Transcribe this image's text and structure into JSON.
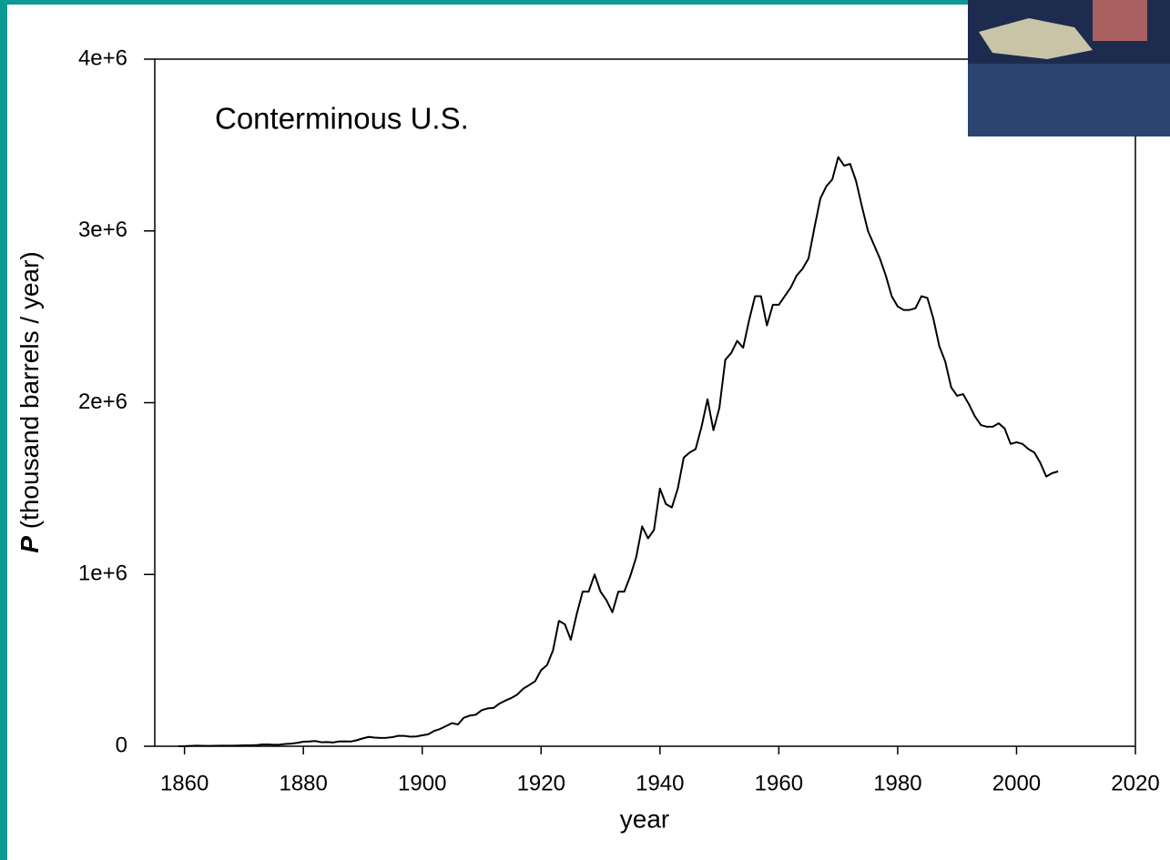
{
  "chart_data": {
    "type": "line",
    "annotation": "Conterminous U.S.",
    "x_label": "year",
    "y_label_symbol": "P",
    "y_label": "(thousand barrels / year)",
    "x": [
      1859,
      1860,
      1861,
      1862,
      1863,
      1864,
      1865,
      1866,
      1867,
      1868,
      1869,
      1870,
      1871,
      1872,
      1873,
      1874,
      1875,
      1876,
      1877,
      1878,
      1879,
      1880,
      1881,
      1882,
      1883,
      1884,
      1885,
      1886,
      1887,
      1888,
      1889,
      1890,
      1891,
      1892,
      1893,
      1894,
      1895,
      1896,
      1897,
      1898,
      1899,
      1900,
      1901,
      1902,
      1903,
      1904,
      1905,
      1906,
      1907,
      1908,
      1909,
      1910,
      1911,
      1912,
      1913,
      1914,
      1915,
      1916,
      1917,
      1918,
      1919,
      1920,
      1921,
      1922,
      1923,
      1924,
      1925,
      1926,
      1927,
      1928,
      1929,
      1930,
      1931,
      1932,
      1933,
      1934,
      1935,
      1936,
      1937,
      1938,
      1939,
      1940,
      1941,
      1942,
      1943,
      1944,
      1945,
      1946,
      1947,
      1948,
      1949,
      1950,
      1951,
      1952,
      1953,
      1954,
      1955,
      1956,
      1957,
      1958,
      1959,
      1960,
      1961,
      1962,
      1963,
      1964,
      1965,
      1966,
      1967,
      1968,
      1969,
      1970,
      1971,
      1972,
      1973,
      1974,
      1975,
      1976,
      1977,
      1978,
      1979,
      1980,
      1981,
      1982,
      1983,
      1984,
      1985,
      1986,
      1987,
      1988,
      1989,
      1990,
      1991,
      1992,
      1993,
      1994,
      1995,
      1996,
      1997,
      1998,
      1999,
      2000,
      2001,
      2002,
      2003,
      2004,
      2005,
      2006,
      2007
    ],
    "values": [
      2,
      500,
      2100,
      3000,
      2600,
      2100,
      2500,
      3600,
      3300,
      3600,
      4200,
      5300,
      5200,
      6300,
      9900,
      10900,
      8800,
      9100,
      13400,
      15400,
      19900,
      26300,
      27700,
      30300,
      23400,
      24200,
      21900,
      28100,
      28300,
      27600,
      35200,
      45800,
      54300,
      50500,
      48400,
      49300,
      52900,
      60900,
      60500,
      55400,
      57100,
      63600,
      69400,
      88800,
      100500,
      117100,
      134700,
      126500,
      166100,
      178500,
      183200,
      209600,
      220400,
      222900,
      248400,
      265800,
      281100,
      300800,
      335300,
      355900,
      378400,
      442900,
      472200,
      557500,
      730000,
      710000,
      620000,
      770000,
      900000,
      900000,
      1000000,
      900000,
      850000,
      780000,
      900000,
      900000,
      990000,
      1100000,
      1280000,
      1210000,
      1260000,
      1500000,
      1410000,
      1390000,
      1500000,
      1680000,
      1710000,
      1730000,
      1860000,
      2020000,
      1840000,
      1970000,
      2250000,
      2290000,
      2360000,
      2320000,
      2480000,
      2620000,
      2620000,
      2450000,
      2570000,
      2570000,
      2620000,
      2670000,
      2740000,
      2780000,
      2840000,
      3020000,
      3190000,
      3260000,
      3300000,
      3430000,
      3380000,
      3390000,
      3290000,
      3140000,
      3000000,
      2920000,
      2840000,
      2740000,
      2620000,
      2560000,
      2540000,
      2540000,
      2550000,
      2620000,
      2610000,
      2490000,
      2330000,
      2240000,
      2090000,
      2040000,
      2050000,
      1990000,
      1920000,
      1870000,
      1860000,
      1860000,
      1880000,
      1850000,
      1760000,
      1770000,
      1760000,
      1730000,
      1710000,
      1650000,
      1570000,
      1590000,
      1600000
    ],
    "color": "#000000",
    "xlim": [
      1855,
      2020
    ],
    "xticks": [
      1860,
      1880,
      1900,
      1920,
      1940,
      1960,
      1980,
      2000,
      2020
    ],
    "ylim": [
      0,
      4000000
    ],
    "yticks": [
      0,
      {
        "value": 1000000,
        "label": "1e+6"
      },
      {
        "value": 2000000,
        "label": "2e+6"
      },
      {
        "value": 3000000,
        "label": "3e+6"
      },
      {
        "value": 4000000,
        "label": "4e+6"
      }
    ]
  }
}
